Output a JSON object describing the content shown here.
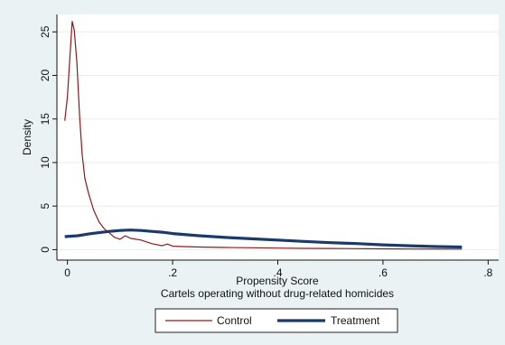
{
  "chart_data": {
    "type": "line",
    "xlabel": "Propensity Score",
    "subtitle": "Cartels operating without drug-related homicides",
    "ylabel": "Density",
    "xlim": [
      -0.02,
      0.82
    ],
    "ylim": [
      -1.2,
      27
    ],
    "x_ticks": [
      0,
      0.2,
      0.4,
      0.6,
      0.8
    ],
    "x_tick_labels": [
      "0",
      ".2",
      ".4",
      ".6",
      ".8"
    ],
    "y_ticks": [
      0,
      5,
      10,
      15,
      20,
      25
    ],
    "y_tick_labels": [
      "0",
      "5",
      "10",
      "15",
      "20",
      "25"
    ],
    "grid": "horizontal",
    "legend_position": "bottom",
    "series": [
      {
        "name": "Control",
        "color": "#8b1a1a",
        "points": [
          [
            -0.005,
            14.8
          ],
          [
            0.0,
            17.5
          ],
          [
            0.005,
            22.5
          ],
          [
            0.009,
            26.2
          ],
          [
            0.013,
            25.2
          ],
          [
            0.018,
            21.5
          ],
          [
            0.023,
            15.5
          ],
          [
            0.028,
            11.0
          ],
          [
            0.033,
            8.2
          ],
          [
            0.04,
            6.5
          ],
          [
            0.05,
            4.5
          ],
          [
            0.06,
            3.2
          ],
          [
            0.07,
            2.4
          ],
          [
            0.08,
            1.9
          ],
          [
            0.09,
            1.4
          ],
          [
            0.1,
            1.2
          ],
          [
            0.11,
            1.6
          ],
          [
            0.12,
            1.3
          ],
          [
            0.14,
            1.1
          ],
          [
            0.16,
            0.7
          ],
          [
            0.18,
            0.45
          ],
          [
            0.19,
            0.65
          ],
          [
            0.2,
            0.4
          ],
          [
            0.22,
            0.35
          ],
          [
            0.25,
            0.3
          ],
          [
            0.3,
            0.25
          ],
          [
            0.35,
            0.22
          ],
          [
            0.4,
            0.18
          ],
          [
            0.45,
            0.15
          ],
          [
            0.5,
            0.14
          ],
          [
            0.55,
            0.12
          ],
          [
            0.6,
            0.1
          ],
          [
            0.65,
            0.08
          ],
          [
            0.7,
            0.07
          ],
          [
            0.75,
            0.06
          ]
        ]
      },
      {
        "name": "Treatment",
        "color": "#1a3a6b",
        "points": [
          [
            -0.005,
            1.5
          ],
          [
            0.02,
            1.6
          ],
          [
            0.04,
            1.8
          ],
          [
            0.06,
            1.95
          ],
          [
            0.08,
            2.1
          ],
          [
            0.1,
            2.2
          ],
          [
            0.12,
            2.25
          ],
          [
            0.14,
            2.2
          ],
          [
            0.16,
            2.1
          ],
          [
            0.18,
            2.0
          ],
          [
            0.2,
            1.85
          ],
          [
            0.25,
            1.6
          ],
          [
            0.3,
            1.4
          ],
          [
            0.35,
            1.25
          ],
          [
            0.4,
            1.1
          ],
          [
            0.45,
            0.95
          ],
          [
            0.5,
            0.8
          ],
          [
            0.55,
            0.7
          ],
          [
            0.6,
            0.55
          ],
          [
            0.65,
            0.45
          ],
          [
            0.7,
            0.35
          ],
          [
            0.75,
            0.3
          ]
        ]
      }
    ]
  }
}
